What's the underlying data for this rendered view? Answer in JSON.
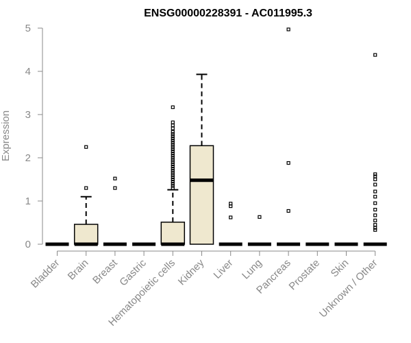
{
  "chart_data": {
    "type": "boxplot",
    "title": "ENSG00000228391 - AC011995.3",
    "ylabel": "Expression",
    "xlabel": "",
    "ylim": [
      0,
      5
    ],
    "yticks": [
      "0",
      "1",
      "2",
      "3",
      "4",
      "5"
    ],
    "grid": false,
    "box_fill": "#efe8cf",
    "categories": [
      "Bladder",
      "Brain",
      "Breast",
      "Gastric",
      "Hematopoietic cells",
      "Kidney",
      "Liver",
      "Lung",
      "Pancreas",
      "Prostate",
      "Skin",
      "Unknown / Other"
    ],
    "boxes": [
      {
        "category": "Bladder",
        "whisker_low": 0,
        "q1": 0,
        "median": 0,
        "q3": 0,
        "whisker_high": 0,
        "outliers": []
      },
      {
        "category": "Brain",
        "whisker_low": 0,
        "q1": 0,
        "median": 0,
        "q3": 0.46,
        "whisker_high": 1.1,
        "outliers": [
          1.3,
          2.25
        ]
      },
      {
        "category": "Breast",
        "whisker_low": 0,
        "q1": 0,
        "median": 0,
        "q3": 0,
        "whisker_high": 0,
        "outliers": [
          1.3,
          1.52
        ]
      },
      {
        "category": "Gastric",
        "whisker_low": 0,
        "q1": 0,
        "median": 0,
        "q3": 0,
        "whisker_high": 0,
        "outliers": []
      },
      {
        "category": "Hematopoietic cells",
        "whisker_low": 0,
        "q1": 0,
        "median": 0,
        "q3": 0.51,
        "whisker_high": 1.26,
        "outliers": [
          1.3,
          1.35,
          1.4,
          1.45,
          1.5,
          1.55,
          1.6,
          1.65,
          1.7,
          1.75,
          1.8,
          1.85,
          1.9,
          1.95,
          2.0,
          2.05,
          2.1,
          2.15,
          2.2,
          2.25,
          2.3,
          2.35,
          2.4,
          2.45,
          2.5,
          2.55,
          2.6,
          2.68,
          2.75,
          2.82,
          3.17
        ]
      },
      {
        "category": "Kidney",
        "whisker_low": 0,
        "q1": 0,
        "median": 1.48,
        "q3": 2.28,
        "whisker_high": 3.93,
        "outliers": []
      },
      {
        "category": "Liver",
        "whisker_low": 0,
        "q1": 0,
        "median": 0,
        "q3": 0,
        "whisker_high": 0,
        "outliers": [
          0.62,
          0.88,
          0.94
        ]
      },
      {
        "category": "Lung",
        "whisker_low": 0,
        "q1": 0,
        "median": 0,
        "q3": 0,
        "whisker_high": 0,
        "outliers": [
          0.63
        ]
      },
      {
        "category": "Pancreas",
        "whisker_low": 0,
        "q1": 0,
        "median": 0,
        "q3": 0,
        "whisker_high": 0,
        "outliers": [
          0.77,
          1.88,
          4.97
        ]
      },
      {
        "category": "Prostate",
        "whisker_low": 0,
        "q1": 0,
        "median": 0,
        "q3": 0,
        "whisker_high": 0,
        "outliers": []
      },
      {
        "category": "Skin",
        "whisker_low": 0,
        "q1": 0,
        "median": 0,
        "q3": 0,
        "whisker_high": 0,
        "outliers": []
      },
      {
        "category": "Unknown / Other",
        "whisker_low": 0,
        "q1": 0,
        "median": 0,
        "q3": 0,
        "whisker_high": 0,
        "outliers": [
          0.33,
          0.38,
          0.45,
          0.55,
          0.67,
          0.8,
          0.95,
          1.1,
          1.22,
          1.38,
          1.5,
          1.57,
          1.62,
          4.38
        ]
      }
    ]
  }
}
